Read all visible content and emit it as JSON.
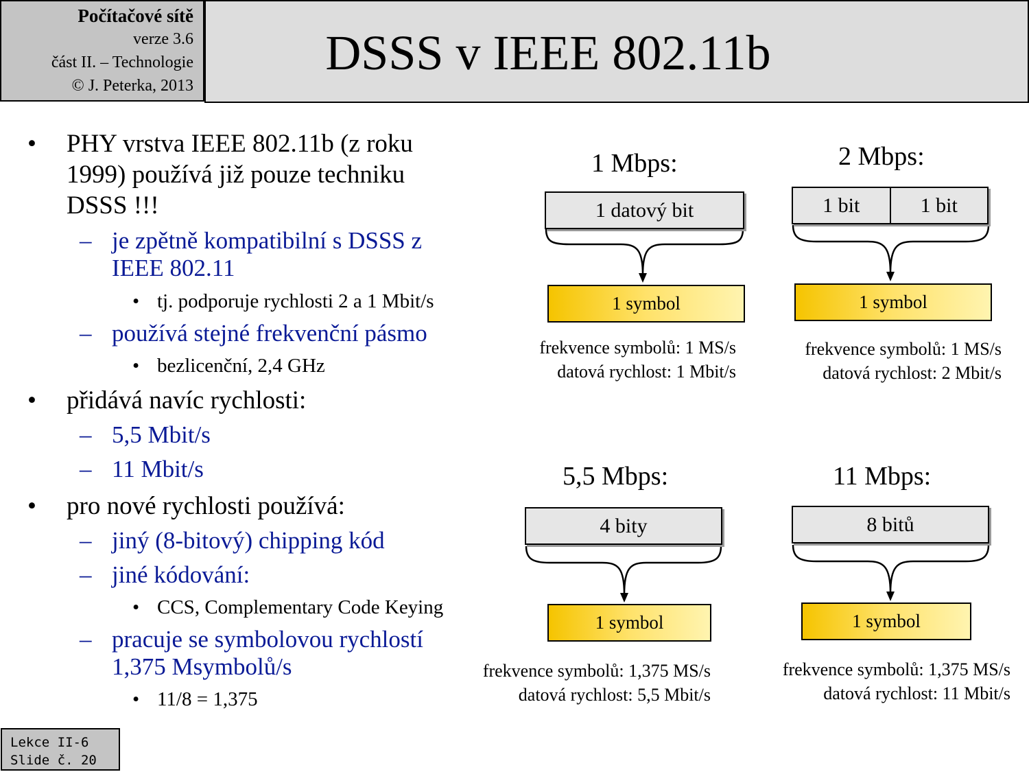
{
  "header": {
    "course": "Počítačové sítě",
    "version": "verze 3.6",
    "part": "část  II. – Technologie",
    "copyright": "© J. Peterka, 2013",
    "title": "DSSS v IEEE 802.11b"
  },
  "bullets": [
    {
      "level": 1,
      "text": "PHY vrstva IEEE 802.11b (z roku"
    },
    {
      "level": 1,
      "text": "1999) používá již pouze techniku",
      "cont": true
    },
    {
      "level": 1,
      "text": "DSSS !!!",
      "cont": true
    },
    {
      "level": 2,
      "text": "je zpětně kompatibilní s DSSS z"
    },
    {
      "level": 2,
      "text": "IEEE 802.11",
      "cont": true
    },
    {
      "level": 3,
      "text": "tj. podporuje rychlosti  2 a 1 Mbit/s"
    },
    {
      "level": 2,
      "text": "používá stejné frekvenční pásmo"
    },
    {
      "level": 3,
      "text": "bezlicenční,  2,4 GHz"
    },
    {
      "level": 1,
      "text": "přidává navíc rychlosti:"
    },
    {
      "level": 2,
      "text": "5,5 Mbit/s"
    },
    {
      "level": 2,
      "text": "11 Mbit/s"
    },
    {
      "level": 1,
      "text": "pro nové rychlosti používá:"
    },
    {
      "level": 2,
      "text": "jiný (8-bitový) chipping kód"
    },
    {
      "level": 2,
      "text": "jiné kódování:"
    },
    {
      "level": 3,
      "text": "CCS, Complementary  Code Keying"
    },
    {
      "level": 2,
      "text": "pracuje se symbolovou  rychlostí"
    },
    {
      "level": 2,
      "text": "1,375 Msymbolů/s",
      "cont": true
    },
    {
      "level": 3,
      "text": "11/8 = 1,375"
    }
  ],
  "markers": {
    "level1": "•",
    "level2": "–",
    "level3": "•"
  },
  "diagrams": [
    {
      "label": "1 Mbps:",
      "bits": [
        "1 datový bit"
      ],
      "symbol": "1 symbol",
      "freq": "frekvence  symbolů:  1 MS/s",
      "rate": "datová  rychlost:  1 Mbit/s"
    },
    {
      "label": "2 Mbps:",
      "bits": [
        "1 bit",
        "1 bit"
      ],
      "symbol": "1 symbol",
      "freq": "frekvence  symbolů:  1 MS/s",
      "rate": "datová  rychlost:  2 Mbit/s"
    },
    {
      "label": "5,5 Mbps:",
      "bits": [
        "4 bity"
      ],
      "symbol": "1 symbol",
      "freq": "frekvence  symbolů:  1,375 MS/s",
      "rate": "datová  rychlost:  5,5 Mbit/s"
    },
    {
      "label": "11 Mbps:",
      "bits": [
        "8 bitů"
      ],
      "symbol": "1 symbol",
      "freq": "frekvence  symbolů:  1,375 MS/s",
      "rate": "datová  rychlost:  11 Mbit/s"
    }
  ],
  "footer": {
    "lecture": "Lekce II-6",
    "slide": "Slide č. 20"
  }
}
